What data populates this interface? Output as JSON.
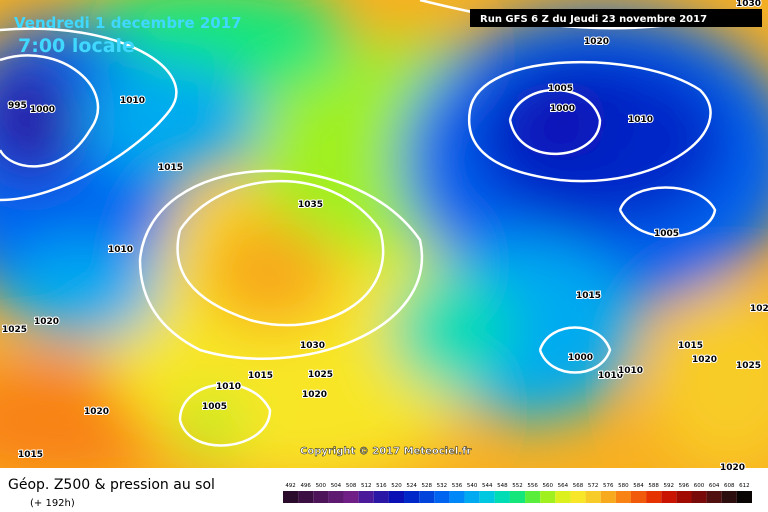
{
  "header": {
    "date": "Vendredi 1 decembre 2017",
    "time": "7:00 locale",
    "run": "Run GFS 6 Z du Jeudi 23 novembre 2017"
  },
  "copyright": "Copyright © 2017 Meteociel.fr",
  "isobar_labels": [
    995,
    1000,
    1010,
    1015,
    1010,
    1025,
    1020,
    1035,
    1030,
    1025,
    1020,
    1015,
    1010,
    1005,
    1020,
    1015,
    1020,
    1005,
    1000,
    1010,
    1005,
    1015,
    1000,
    1010,
    1010,
    1015,
    1020,
    1025,
    1020,
    1030,
    102
  ],
  "footer": {
    "title": "Géop. Z500 & pression au sol",
    "subtitle": "(+ 192h)"
  },
  "legend": {
    "items": [
      {
        "value": 492,
        "color": "#2b0b2b"
      },
      {
        "value": 496,
        "color": "#3c0f42"
      },
      {
        "value": 500,
        "color": "#4d1459"
      },
      {
        "value": 504,
        "color": "#5e1a70"
      },
      {
        "value": 508,
        "color": "#6f1f86"
      },
      {
        "value": 512,
        "color": "#4b1a9a"
      },
      {
        "value": 516,
        "color": "#2a17a6"
      },
      {
        "value": 520,
        "color": "#0a10b4"
      },
      {
        "value": 524,
        "color": "#0028c8"
      },
      {
        "value": 528,
        "color": "#0044dc"
      },
      {
        "value": 532,
        "color": "#0064f0"
      },
      {
        "value": 536,
        "color": "#0088f8"
      },
      {
        "value": 540,
        "color": "#00aaf0"
      },
      {
        "value": 544,
        "color": "#00c8e0"
      },
      {
        "value": 548,
        "color": "#00dcb4"
      },
      {
        "value": 552,
        "color": "#14e67c"
      },
      {
        "value": 556,
        "color": "#5aee3c"
      },
      {
        "value": 560,
        "color": "#a0f020"
      },
      {
        "value": 564,
        "color": "#dcf01e"
      },
      {
        "value": 568,
        "color": "#f8e628"
      },
      {
        "value": 572,
        "color": "#f8cc28"
      },
      {
        "value": 576,
        "color": "#f8aa1e"
      },
      {
        "value": 580,
        "color": "#f88214"
      },
      {
        "value": 584,
        "color": "#f05a0a"
      },
      {
        "value": 588,
        "color": "#e63200"
      },
      {
        "value": 592,
        "color": "#c81400"
      },
      {
        "value": 596,
        "color": "#a00a00"
      },
      {
        "value": 600,
        "color": "#780a0a"
      },
      {
        "value": 604,
        "color": "#501010"
      },
      {
        "value": 608,
        "color": "#2d0e0e"
      },
      {
        "value": 612,
        "color": "#0a0505"
      }
    ]
  }
}
